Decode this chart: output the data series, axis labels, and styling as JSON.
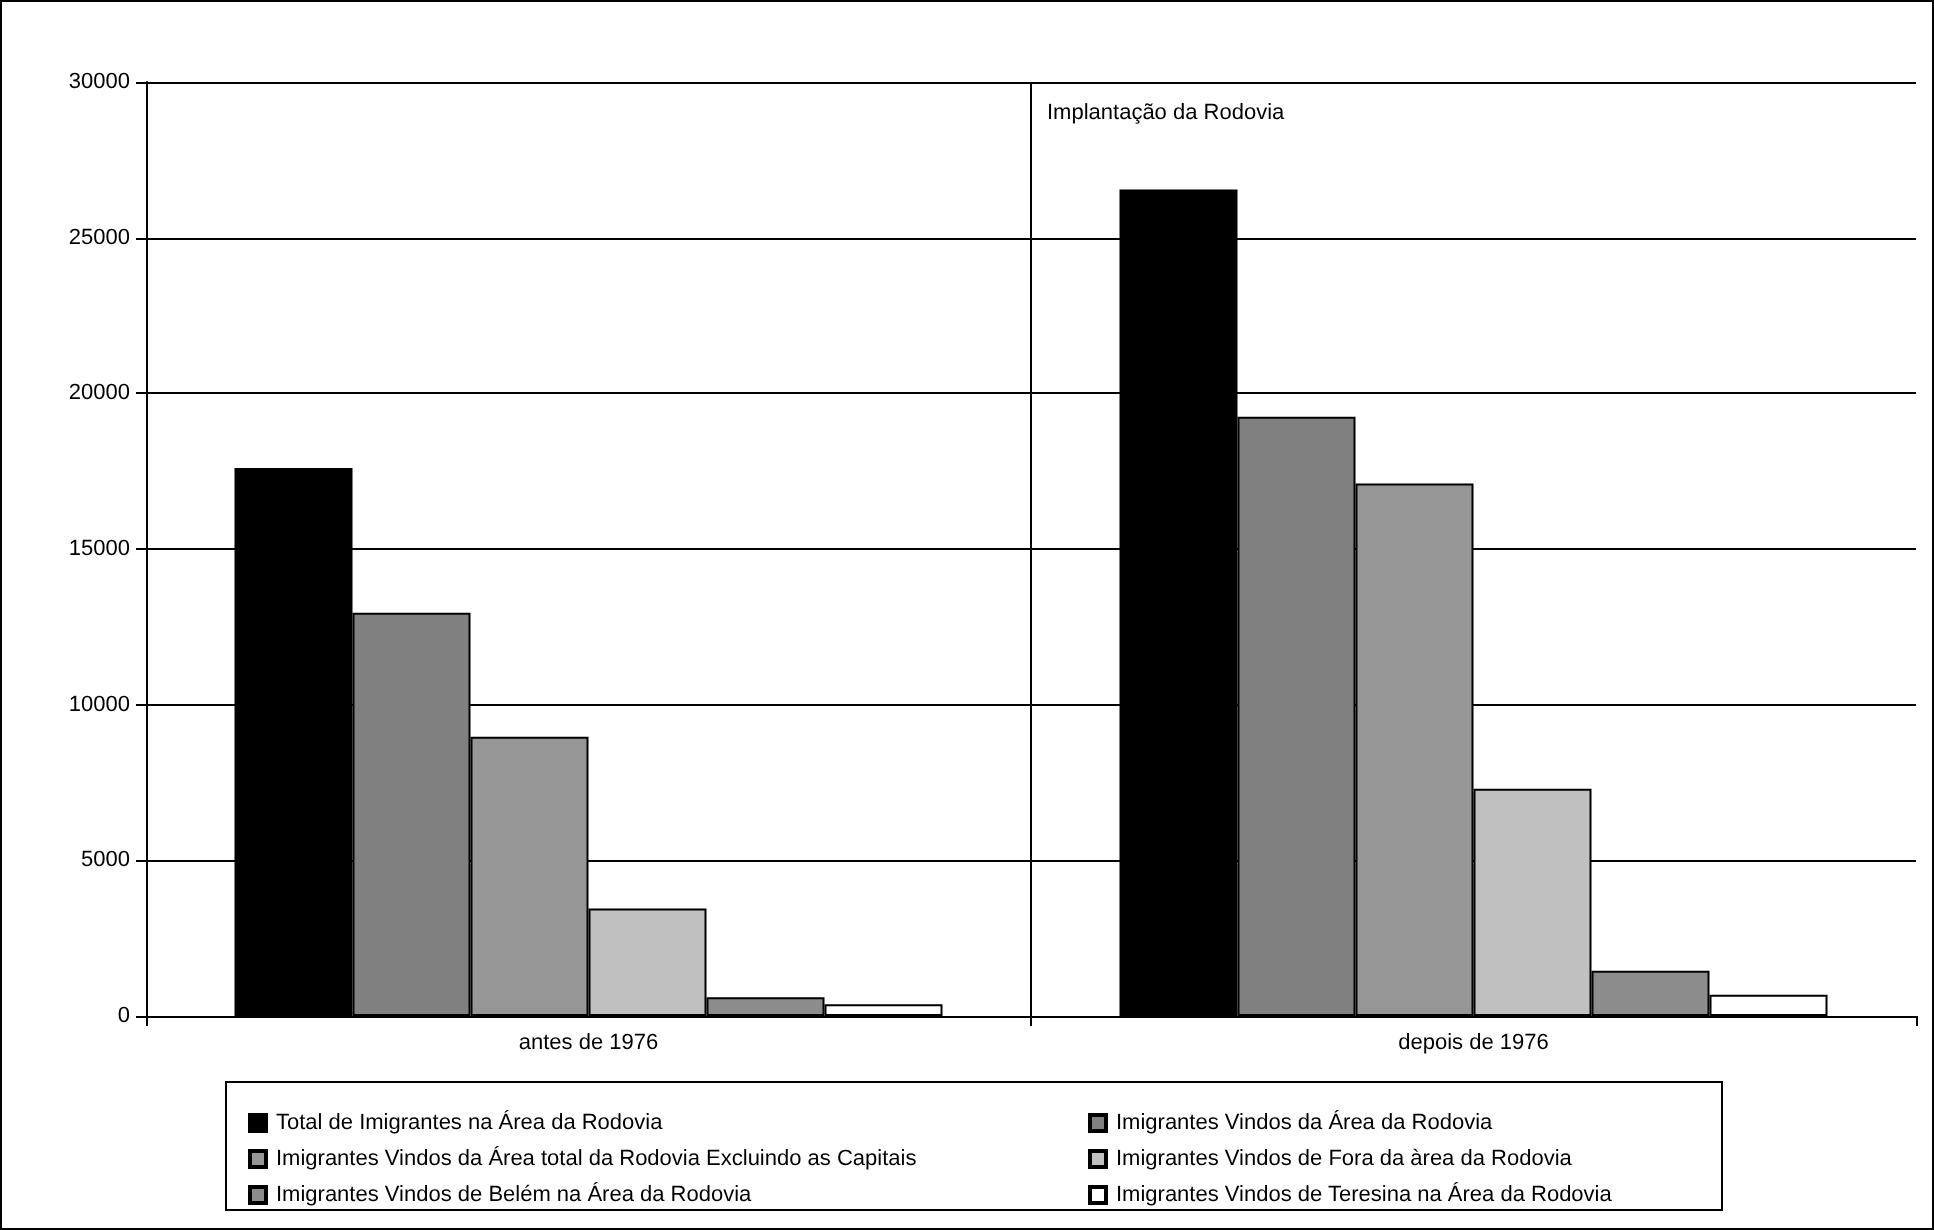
{
  "chart_data": {
    "type": "bar",
    "categories": [
      "antes de 1976",
      "depois de 1976"
    ],
    "series": [
      {
        "name": "Total de Imigrantes na Área da Rodovia",
        "color": "#000000",
        "values": [
          17600,
          26550
        ]
      },
      {
        "name": "Imigrantes Vindos da Área da Rodovia",
        "color": "#808080",
        "values": [
          12950,
          19250
        ]
      },
      {
        "name": "Imigrantes Vindos da Área total da Rodovia Excluindo as Capitais",
        "color": "#969696",
        "values": [
          8970,
          17100
        ]
      },
      {
        "name": "Imigrantes Vindos de Fora da àrea da Rodovia",
        "color": "#c0c0c0",
        "values": [
          3450,
          7300
        ]
      },
      {
        "name": "Imigrantes Vindos de Belém na Área da Rodovia",
        "color": "#8c8c8c",
        "values": [
          600,
          1450
        ]
      },
      {
        "name": "Imigrantes Vindos de Teresina na Área da Rodovia",
        "color": "#ffffff",
        "values": [
          380,
          680
        ]
      }
    ],
    "ylim": [
      0,
      30000
    ],
    "yticks": [
      0,
      5000,
      10000,
      15000,
      20000,
      25000,
      30000
    ],
    "annotations": [
      "Implantação da Rodovia"
    ],
    "grid": "y",
    "legend": "bottom"
  }
}
